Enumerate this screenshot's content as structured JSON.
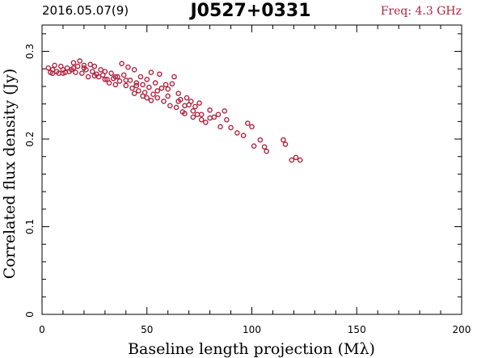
{
  "header": {
    "date": "2016.05.07(9)",
    "source": "J0527+0331",
    "frequency": "Freq: 4.3 GHz"
  },
  "colors": {
    "points": "#b0243f",
    "freq_text": "#b0243f",
    "axes": "#000000"
  },
  "chart_data": {
    "type": "scatter",
    "xlabel": "Baseline length projection (Mλ)",
    "ylabel": "Correlated flux density (Jy)",
    "xlim": [
      0,
      200
    ],
    "ylim": [
      0,
      0.33
    ],
    "x_ticks": [
      0,
      50,
      100,
      150,
      200
    ],
    "y_ticks": [
      0,
      0.1,
      0.2,
      0.3
    ],
    "x_tick_labels": [
      "0",
      "50",
      "100",
      "150",
      "200"
    ],
    "y_tick_labels": [
      "0",
      "0.1",
      "0.2",
      "0.3"
    ],
    "marker": "open-circle",
    "grid": false,
    "points": [
      [
        3,
        0.281
      ],
      [
        4,
        0.276
      ],
      [
        5,
        0.279
      ],
      [
        6,
        0.284
      ],
      [
        7,
        0.277
      ],
      [
        8,
        0.275
      ],
      [
        9,
        0.283
      ],
      [
        10,
        0.279
      ],
      [
        11,
        0.276
      ],
      [
        12,
        0.281
      ],
      [
        13,
        0.277
      ],
      [
        14,
        0.279
      ],
      [
        15,
        0.287
      ],
      [
        16,
        0.276
      ],
      [
        17,
        0.283
      ],
      [
        18,
        0.289
      ],
      [
        19,
        0.275
      ],
      [
        20,
        0.281
      ],
      [
        21,
        0.279
      ],
      [
        22,
        0.271
      ],
      [
        23,
        0.285
      ],
      [
        24,
        0.277
      ],
      [
        25,
        0.283
      ],
      [
        26,
        0.274
      ],
      [
        27,
        0.271
      ],
      [
        28,
        0.279
      ],
      [
        29,
        0.273
      ],
      [
        30,
        0.277
      ],
      [
        31,
        0.268
      ],
      [
        32,
        0.264
      ],
      [
        33,
        0.275
      ],
      [
        34,
        0.269
      ],
      [
        35,
        0.262
      ],
      [
        36,
        0.271
      ],
      [
        37,
        0.266
      ],
      [
        38,
        0.286
      ],
      [
        39,
        0.273
      ],
      [
        40,
        0.261
      ],
      [
        41,
        0.282
      ],
      [
        42,
        0.267
      ],
      [
        43,
        0.258
      ],
      [
        44,
        0.279
      ],
      [
        45,
        0.264
      ],
      [
        46,
        0.255
      ],
      [
        47,
        0.271
      ],
      [
        48,
        0.262
      ],
      [
        49,
        0.253
      ],
      [
        50,
        0.268
      ],
      [
        51,
        0.259
      ],
      [
        52,
        0.276
      ],
      [
        53,
        0.251
      ],
      [
        54,
        0.264
      ],
      [
        55,
        0.247
      ],
      [
        56,
        0.274
      ],
      [
        57,
        0.258
      ],
      [
        58,
        0.243
      ],
      [
        59,
        0.262
      ],
      [
        60,
        0.249
      ],
      [
        61,
        0.238
      ],
      [
        62,
        0.263
      ],
      [
        63,
        0.271
      ],
      [
        64,
        0.236
      ],
      [
        65,
        0.252
      ],
      [
        66,
        0.245
      ],
      [
        67,
        0.231
      ],
      [
        68,
        0.229
      ],
      [
        69,
        0.247
      ],
      [
        70,
        0.239
      ],
      [
        71,
        0.243
      ],
      [
        72,
        0.225
      ],
      [
        73,
        0.237
      ],
      [
        74,
        0.228
      ],
      [
        75,
        0.241
      ],
      [
        76,
        0.222
      ],
      [
        78,
        0.219
      ],
      [
        80,
        0.233
      ],
      [
        82,
        0.225
      ],
      [
        84,
        0.228
      ],
      [
        85,
        0.214
      ],
      [
        87,
        0.232
      ],
      [
        88,
        0.222
      ],
      [
        90,
        0.213
      ],
      [
        93,
        0.207
      ],
      [
        96,
        0.204
      ],
      [
        98,
        0.218
      ],
      [
        100,
        0.214
      ],
      [
        101,
        0.192
      ],
      [
        104,
        0.199
      ],
      [
        106,
        0.191
      ],
      [
        107,
        0.186
      ],
      [
        115,
        0.199
      ],
      [
        116,
        0.194
      ],
      [
        119,
        0.176
      ],
      [
        121,
        0.179
      ],
      [
        123,
        0.176
      ],
      [
        5,
        0.275
      ],
      [
        10,
        0.275
      ],
      [
        15,
        0.281
      ],
      [
        20,
        0.284
      ],
      [
        25,
        0.272
      ],
      [
        30,
        0.268
      ],
      [
        35,
        0.271
      ],
      [
        40,
        0.267
      ],
      [
        45,
        0.261
      ],
      [
        50,
        0.247
      ],
      [
        55,
        0.255
      ],
      [
        60,
        0.257
      ],
      [
        65,
        0.243
      ],
      [
        68,
        0.238
      ],
      [
        72,
        0.232
      ],
      [
        76,
        0.228
      ],
      [
        80,
        0.224
      ],
      [
        44,
        0.252
      ],
      [
        48,
        0.249
      ],
      [
        52,
        0.244
      ]
    ]
  }
}
